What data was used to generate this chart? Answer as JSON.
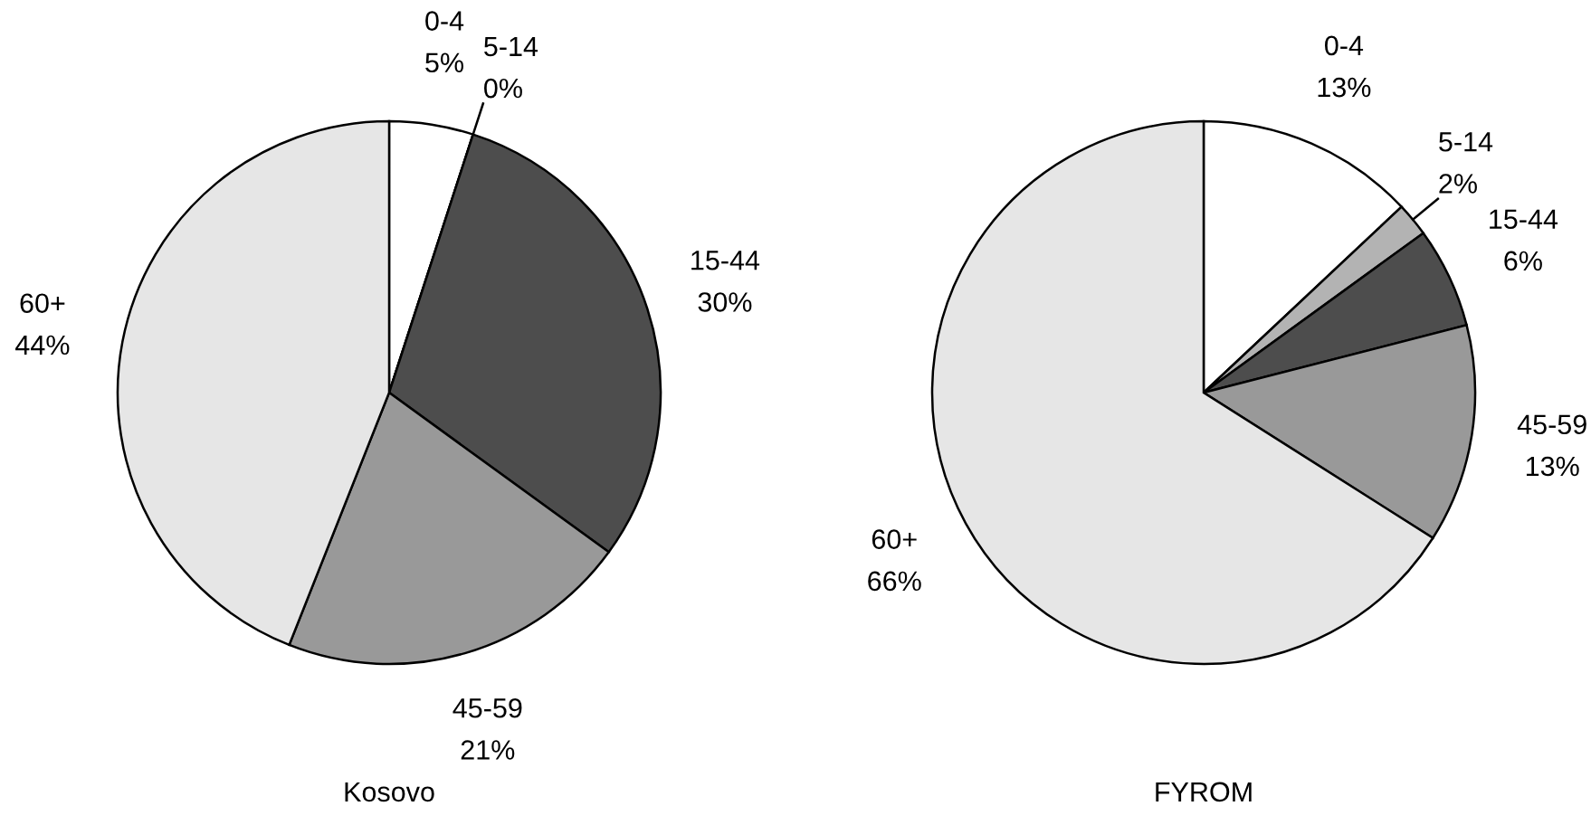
{
  "chart_data": [
    {
      "type": "pie",
      "title": "Kosovo",
      "categories": [
        "0-4",
        "5-14",
        "15-44",
        "45-59",
        "60+"
      ],
      "values": [
        5,
        0,
        30,
        21,
        44
      ],
      "value_labels": [
        "5%",
        "0%",
        "30%",
        "21%",
        "44%"
      ],
      "colors": [
        "#ffffff",
        "#b3b3b3",
        "#4d4d4d",
        "#999999",
        "#e6e6e6"
      ]
    },
    {
      "type": "pie",
      "title": "FYROM",
      "categories": [
        "0-4",
        "5-14",
        "15-44",
        "45-59",
        "60+"
      ],
      "values": [
        13,
        2,
        6,
        13,
        66
      ],
      "value_labels": [
        "13%",
        "2%",
        "6%",
        "13%",
        "66%"
      ],
      "colors": [
        "#ffffff",
        "#b3b3b3",
        "#4d4d4d",
        "#999999",
        "#e6e6e6"
      ]
    }
  ]
}
